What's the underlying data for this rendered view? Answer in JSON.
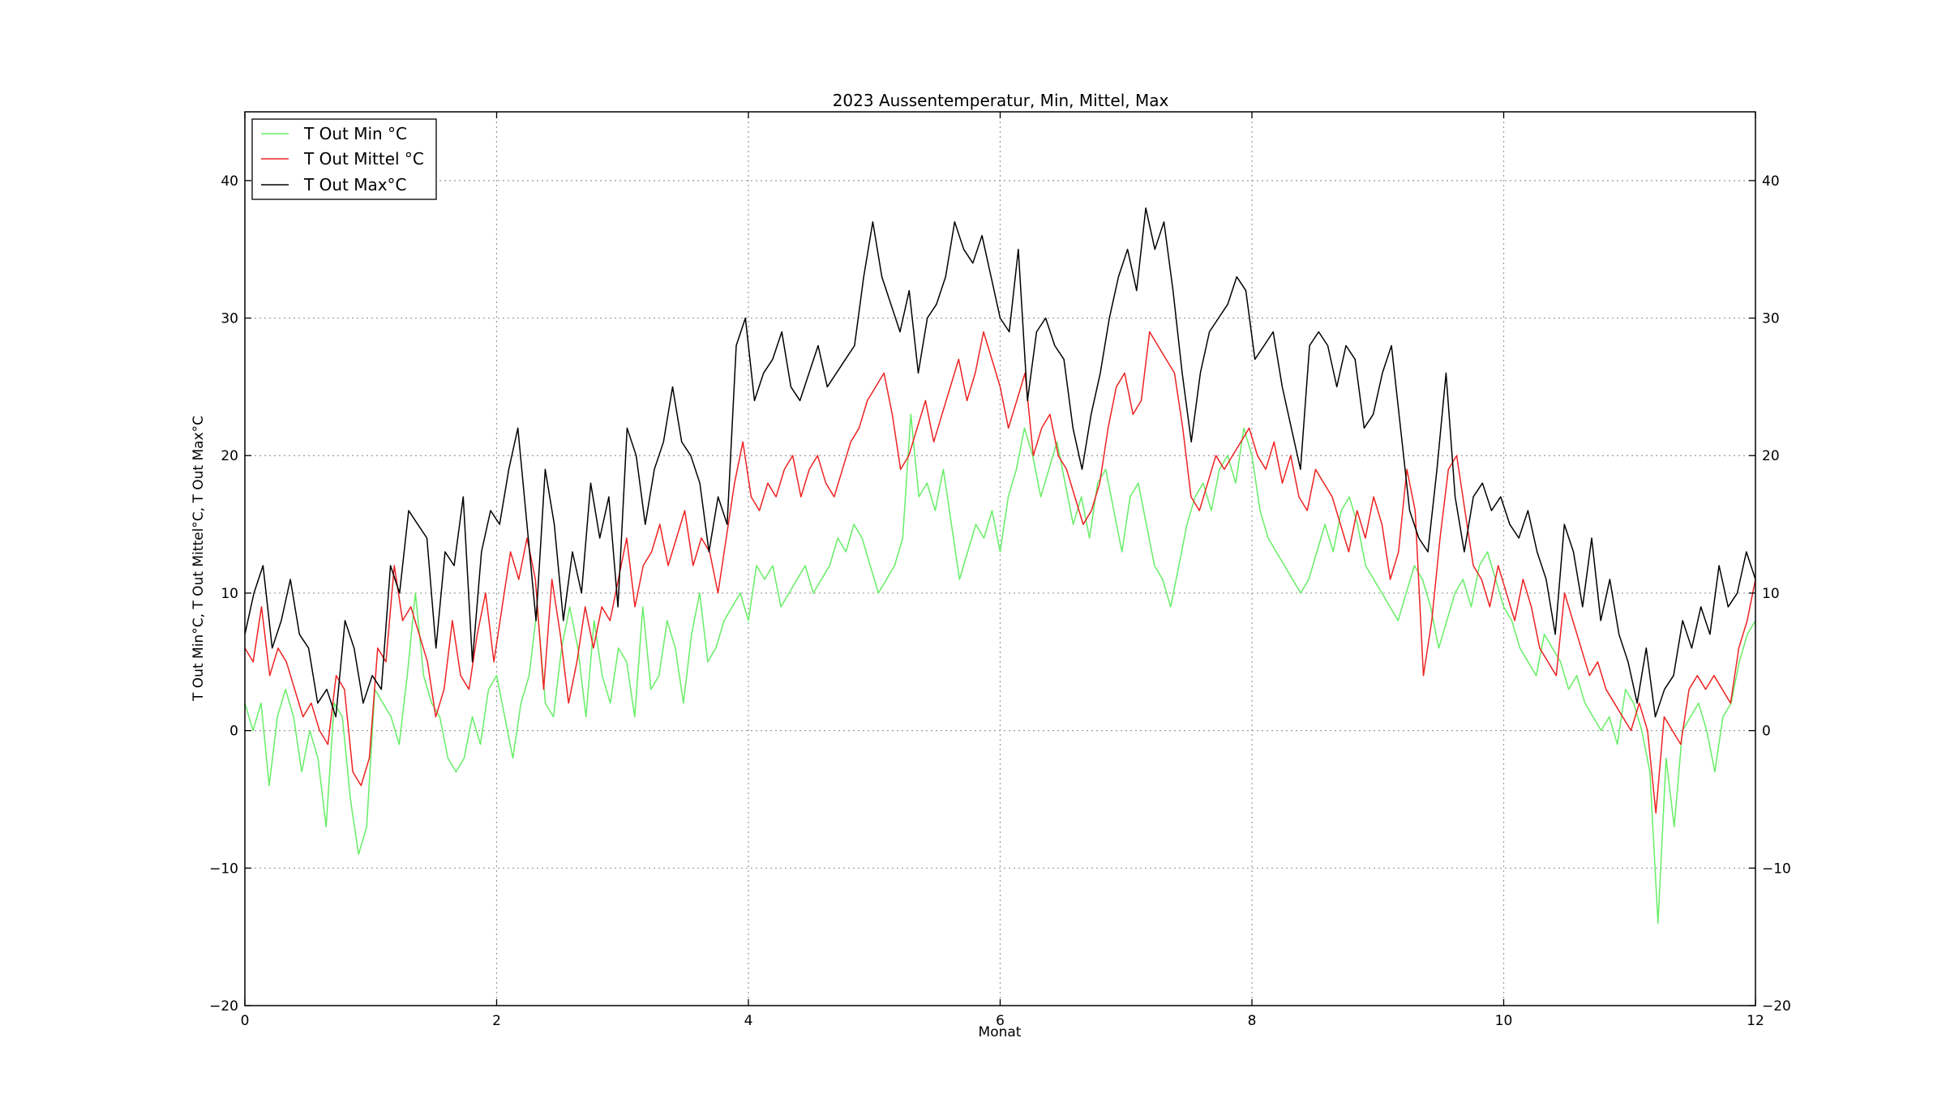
{
  "chart_data": {
    "type": "line",
    "title": "2023 Aussentemperatur, Min, Mittel, Max",
    "xlabel": "Monat",
    "ylabel": "T Out Min°C, T Out Mittel°C, T Out Max°C",
    "xlim": [
      0,
      12
    ],
    "ylim": [
      -20,
      45
    ],
    "xticks": [
      0,
      2,
      4,
      6,
      8,
      10,
      12
    ],
    "yticks": [
      -20,
      -10,
      0,
      10,
      20,
      30,
      40
    ],
    "xtick_labels": [
      "0",
      "2",
      "4",
      "6",
      "8",
      "10",
      "12"
    ],
    "ytick_labels": [
      "−20",
      "−10",
      "0",
      "10",
      "20",
      "30",
      "40"
    ],
    "grid": true,
    "legend_position": "top-left",
    "x_step": 0.2,
    "series": [
      {
        "name": "T Out Min °C",
        "color": "#66ee66",
        "values": [
          2,
          0,
          2,
          -4,
          1,
          3,
          1,
          -3,
          0,
          -2,
          -7,
          2,
          1,
          -5,
          -9,
          -7,
          3,
          2,
          1,
          -1,
          4,
          10,
          4,
          2,
          1,
          -2,
          -3,
          -2,
          1,
          -1,
          3,
          4,
          1,
          -2,
          2,
          4,
          9,
          2,
          1,
          6,
          9,
          6,
          1,
          8,
          4,
          2,
          6,
          5,
          1,
          9,
          3,
          4,
          8,
          6,
          2,
          7,
          10,
          5,
          6,
          8,
          9,
          10,
          8,
          12,
          11,
          12,
          9,
          10,
          11,
          12,
          10,
          11,
          12,
          14,
          13,
          15,
          14,
          12,
          10,
          11,
          12,
          14,
          23,
          17,
          18,
          16,
          19,
          15,
          11,
          13,
          15,
          14,
          16,
          13,
          17,
          19,
          22,
          20,
          17,
          19,
          21,
          18,
          15,
          17,
          14,
          18,
          19,
          16,
          13,
          17,
          18,
          15,
          12,
          11,
          9,
          12,
          15,
          17,
          18,
          16,
          19,
          20,
          18,
          22,
          20,
          16,
          14,
          13,
          12,
          11,
          10,
          11,
          13,
          15,
          13,
          16,
          17,
          15,
          12,
          11,
          10,
          9,
          8,
          10,
          12,
          11,
          9,
          6,
          8,
          10,
          11,
          9,
          12,
          13,
          11,
          9,
          8,
          6,
          5,
          4,
          7,
          6,
          5,
          3,
          4,
          2,
          1,
          0,
          1,
          -1,
          3,
          2,
          0,
          -3,
          -14,
          -2,
          -7,
          0,
          1,
          2,
          0,
          -3,
          1,
          2,
          5,
          7,
          8
        ]
      },
      {
        "name": "T Out Mittel °C",
        "color": "#ee2222",
        "values": [
          6,
          5,
          9,
          4,
          6,
          5,
          3,
          1,
          2,
          0,
          -1,
          4,
          3,
          -3,
          -4,
          -2,
          6,
          5,
          12,
          8,
          9,
          7,
          5,
          1,
          3,
          8,
          4,
          3,
          7,
          10,
          5,
          9,
          13,
          11,
          14,
          11,
          3,
          11,
          7,
          2,
          5,
          9,
          6,
          9,
          8,
          11,
          14,
          9,
          12,
          13,
          15,
          12,
          14,
          16,
          12,
          14,
          13,
          10,
          14,
          18,
          21,
          17,
          16,
          18,
          17,
          19,
          20,
          17,
          19,
          20,
          18,
          17,
          19,
          21,
          22,
          24,
          25,
          26,
          23,
          19,
          20,
          22,
          24,
          21,
          23,
          25,
          27,
          24,
          26,
          29,
          27,
          25,
          22,
          24,
          26,
          20,
          22,
          23,
          20,
          19,
          17,
          15,
          16,
          18,
          22,
          25,
          26,
          23,
          24,
          29,
          28,
          27,
          26,
          22,
          17,
          16,
          18,
          20,
          19,
          20,
          21,
          22,
          20,
          19,
          21,
          18,
          20,
          17,
          16,
          19,
          18,
          17,
          15,
          13,
          16,
          14,
          17,
          15,
          11,
          13,
          19,
          16,
          4,
          8,
          14,
          19,
          20,
          16,
          12,
          11,
          9,
          12,
          10,
          8,
          11,
          9,
          6,
          5,
          4,
          10,
          8,
          6,
          4,
          5,
          3,
          2,
          1,
          0,
          2,
          0,
          -6,
          1,
          0,
          -1,
          3,
          4,
          3,
          4,
          3,
          2,
          6,
          8,
          11
        ]
      },
      {
        "name": "T Out Max°C",
        "color": "#000000",
        "values": [
          7,
          10,
          12,
          6,
          8,
          11,
          7,
          6,
          2,
          3,
          1,
          8,
          6,
          2,
          4,
          3,
          12,
          10,
          16,
          15,
          14,
          6,
          13,
          12,
          17,
          5,
          13,
          16,
          15,
          19,
          22,
          15,
          8,
          19,
          15,
          8,
          13,
          10,
          18,
          14,
          17,
          9,
          22,
          20,
          15,
          19,
          21,
          25,
          21,
          20,
          18,
          13,
          17,
          15,
          28,
          30,
          24,
          26,
          27,
          29,
          25,
          24,
          26,
          28,
          25,
          26,
          27,
          28,
          33,
          37,
          33,
          31,
          29,
          32,
          26,
          30,
          31,
          33,
          37,
          35,
          34,
          36,
          33,
          30,
          29,
          35,
          24,
          29,
          30,
          28,
          27,
          22,
          19,
          23,
          26,
          30,
          33,
          35,
          32,
          38,
          35,
          37,
          32,
          26,
          21,
          26,
          29,
          30,
          31,
          33,
          32,
          27,
          28,
          29,
          25,
          22,
          19,
          28,
          29,
          28,
          25,
          28,
          27,
          22,
          23,
          26,
          28,
          22,
          16,
          14,
          13,
          19,
          26,
          17,
          13,
          17,
          18,
          16,
          17,
          15,
          14,
          16,
          13,
          11,
          7,
          15,
          13,
          9,
          14,
          8,
          11,
          7,
          5,
          2,
          6,
          1,
          3,
          4,
          8,
          6,
          9,
          7,
          12,
          9,
          10,
          13,
          11
        ]
      }
    ]
  }
}
